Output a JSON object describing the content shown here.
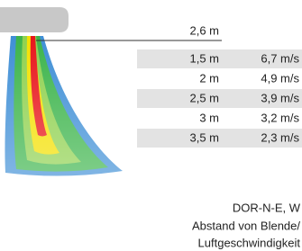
{
  "header": {
    "height": "2,6 m"
  },
  "table": {
    "rows": [
      [
        "1,5 m",
        "6,7 m/s"
      ],
      [
        "2 m",
        "4,9 m/s"
      ],
      [
        "2,5 m",
        "3,9 m/s"
      ],
      [
        "3 m",
        "3,2 m/s"
      ],
      [
        "3,5 m",
        "2,3 m/s"
      ]
    ]
  },
  "caption": {
    "lines": [
      "DOR-N-E, W",
      "Abstand von Blende/",
      "Luftgeschwindigkeit"
    ]
  }
}
